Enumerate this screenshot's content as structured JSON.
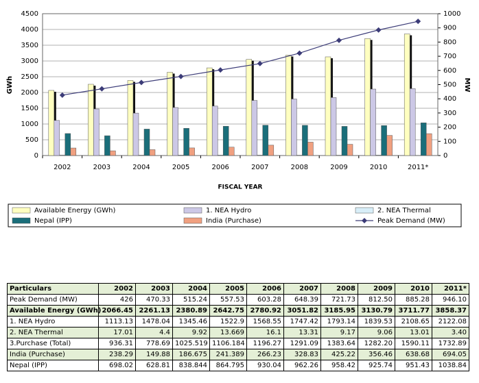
{
  "chart_data": {
    "type": "bar",
    "x_label": "FISCAL YEAR",
    "y_label": "GWh",
    "y2_label": "MW",
    "categories": [
      "2002",
      "2003",
      "2004",
      "2005",
      "2006",
      "2007",
      "2008",
      "2009",
      "2010",
      "2011*"
    ],
    "series": [
      {
        "name": "Available Energy (GWh)",
        "color": "#ffffc0",
        "values": [
          2066.45,
          2261.13,
          2380.89,
          2642.75,
          2780.92,
          3051.82,
          3185.95,
          3130.79,
          3711.77,
          3858.37
        ]
      },
      {
        "name": "1.  NEA Hydro",
        "color": "#ccc8e6",
        "values": [
          1113.13,
          1478.04,
          1345.46,
          1522.9,
          1568.55,
          1747.42,
          1793.14,
          1839.53,
          2108.65,
          2122.08
        ]
      },
      {
        "name": "2. NEA Thermal",
        "color": "#d8eef8",
        "values": [
          17.01,
          4.4,
          9.92,
          13.669,
          16.1,
          13.31,
          9.17,
          9.06,
          13.01,
          3.4
        ]
      },
      {
        "name": "Nepal  (IPP)",
        "color": "#1a6e7a",
        "values": [
          698.02,
          628.81,
          838.844,
          864.795,
          930.04,
          962.26,
          958.42,
          925.74,
          951.43,
          1038.84
        ]
      },
      {
        "name": "India (Purchase)",
        "color": "#f0a080",
        "values": [
          238.29,
          149.88,
          186.675,
          241.389,
          266.23,
          328.83,
          425.22,
          356.46,
          638.68,
          694.05
        ]
      },
      {
        "name": "Peak Demand (MW)",
        "color": "#3c3c78",
        "axis": "y2",
        "type": "line",
        "values": [
          426,
          470.33,
          515.24,
          557.53,
          603.28,
          648.39,
          721.73,
          812.5,
          885.28,
          946.1
        ]
      }
    ],
    "ylim": [
      0,
      4500
    ],
    "yticks": [
      0,
      500,
      1000,
      1500,
      2000,
      2500,
      3000,
      3500,
      4000,
      4500
    ],
    "y2lim": [
      0,
      1000
    ],
    "y2ticks": [
      0,
      100,
      200,
      300,
      400,
      500,
      600,
      700,
      800,
      900,
      1000
    ],
    "grid": true
  },
  "table": {
    "rows": [
      [
        "Particulars",
        "2002",
        "2003",
        "2004",
        "2005",
        "2006",
        "2007",
        "2008",
        "2009",
        "2010",
        "2011*"
      ],
      [
        "Peak Demand (MW)",
        "426",
        "470.33",
        "515.24",
        "557.53",
        "603.28",
        "648.39",
        "721.73",
        "812.50",
        "885.28",
        "946.10"
      ],
      [
        "Available Energy (GWh)",
        "2066.45",
        "2261.13",
        "2380.89",
        "2642.75",
        "2780.92",
        "3051.82",
        "3185.95",
        "3130.79",
        "3711.77",
        "3858.37"
      ],
      [
        "1.  NEA Hydro",
        "1113.13",
        "1478.04",
        "1345.46",
        "1522.9",
        "1568.55",
        "1747.42",
        "1793.14",
        "1839.53",
        "2108.65",
        "2122.08"
      ],
      [
        "2. NEA Thermal",
        "17.01",
        "4.4",
        "9.92",
        "13.669",
        "16.1",
        "13.31",
        "9.17",
        "9.06",
        "13.01",
        "3.40"
      ],
      [
        "3.Purchase (Total)",
        "936.31",
        "778.69",
        "1025.519",
        "1106.184",
        "1196.27",
        "1291.09",
        "1383.64",
        "1282.20",
        "1590.11",
        "1732.89"
      ],
      [
        "India (Purchase)",
        "238.29",
        "149.88",
        "186.675",
        "241.389",
        "266.23",
        "328.83",
        "425.22",
        "356.46",
        "638.68",
        "694.05"
      ],
      [
        "Nepal  (IPP)",
        "698.02",
        "628.81",
        "838.844",
        "864.795",
        "930.04",
        "962.26",
        "958.42",
        "925.74",
        "951.43",
        "1038.84"
      ]
    ]
  }
}
